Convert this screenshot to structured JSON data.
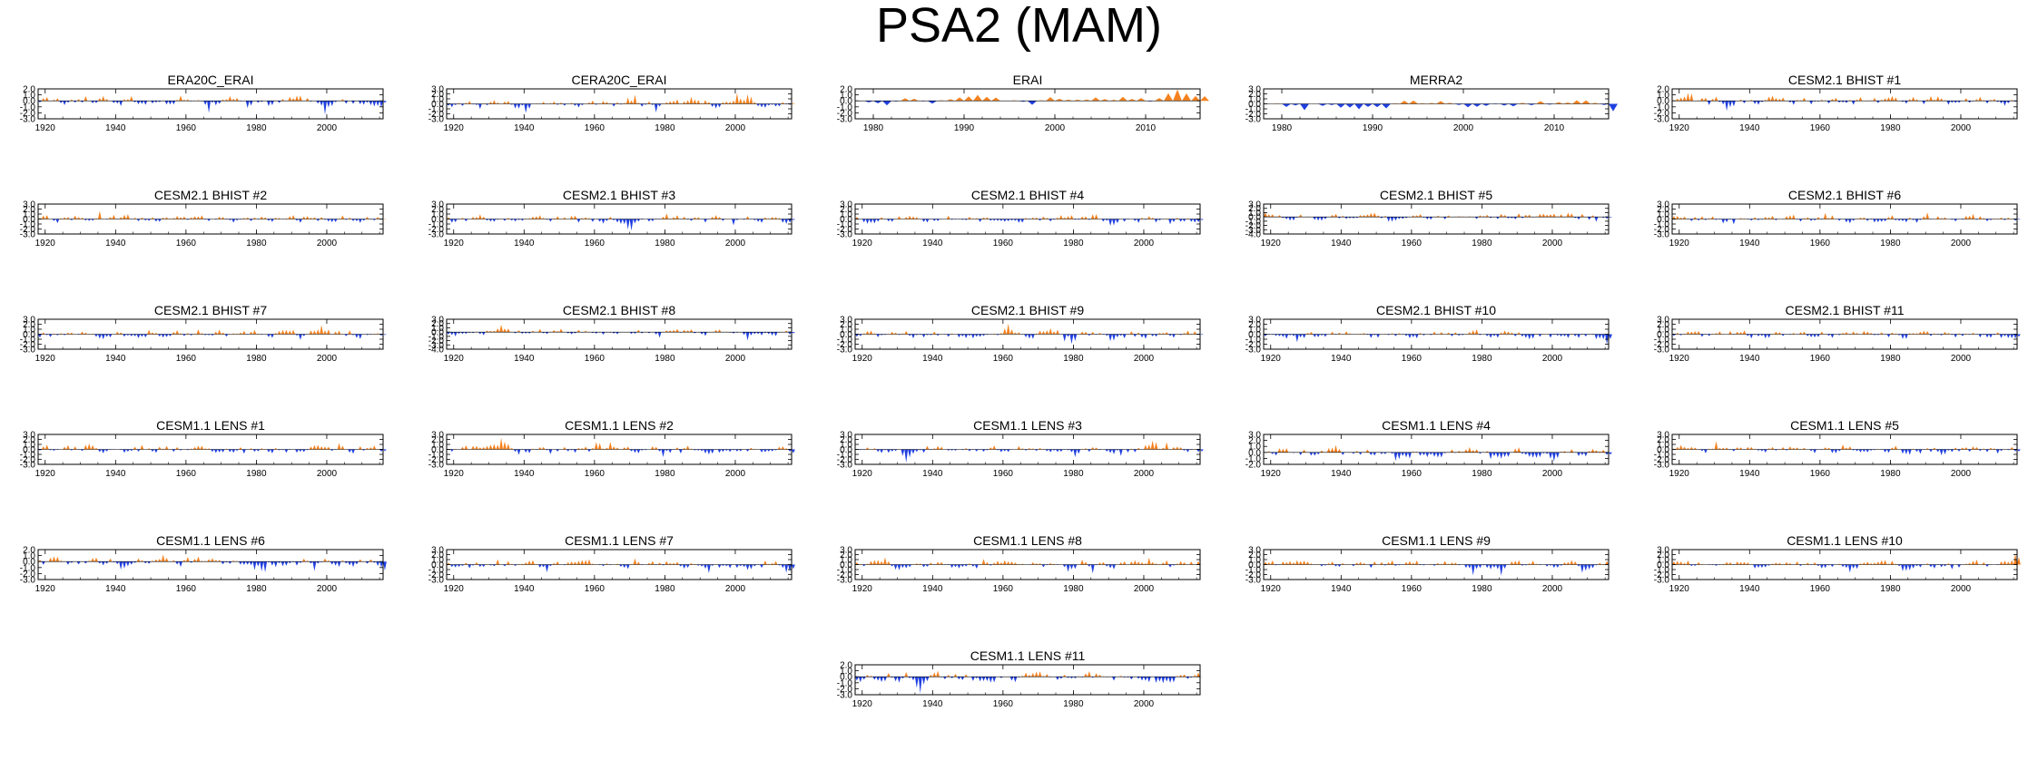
{
  "figure": {
    "title": "PSA2 (MAM)"
  },
  "colors": {
    "positive": "#f5821f",
    "negative": "#2040e0",
    "frame": "#000000"
  },
  "chart_data": [
    {
      "type": "area",
      "title": "ERA20C_ERAI",
      "x_range": [
        1918,
        2016
      ],
      "xticks": [
        "1920",
        "1940",
        "1960",
        "1980",
        "2000"
      ],
      "xtick_values": [
        1920,
        1940,
        1960,
        1980,
        2000
      ],
      "ylim": [
        -3,
        2
      ],
      "yticks": [
        "2.0",
        "1.0",
        "0.0",
        "-1.0",
        "-2.0",
        "-3.0"
      ],
      "ytick_values": [
        2,
        1,
        0,
        -1,
        -2,
        -3
      ]
    },
    {
      "type": "area",
      "title": "CERA20C_ERAI",
      "x_range": [
        1918,
        2016
      ],
      "xticks": [
        "1920",
        "1940",
        "1960",
        "1980",
        "2000"
      ],
      "xtick_values": [
        1920,
        1940,
        1960,
        1980,
        2000
      ],
      "ylim": [
        -3,
        3
      ],
      "yticks": [
        "3.0",
        "2.0",
        "1.0",
        "0.0",
        "-1.0",
        "-2.0",
        "-3.0"
      ],
      "ytick_values": [
        3,
        2,
        1,
        0,
        -1,
        -2,
        -3
      ]
    },
    {
      "type": "area",
      "title": "ERAI",
      "x_range": [
        1978,
        2016
      ],
      "xticks": [
        "1980",
        "1990",
        "2000",
        "2010"
      ],
      "xtick_values": [
        1980,
        1990,
        2000,
        2010
      ],
      "ylim": [
        -3,
        2
      ],
      "yticks": [
        "2.0",
        "1.0",
        "0.0",
        "-1.0",
        "-2.0",
        "-3.0"
      ],
      "ytick_values": [
        2,
        1,
        0,
        -1,
        -2,
        -3
      ]
    },
    {
      "type": "area",
      "title": "MERRA2",
      "x_range": [
        1978,
        2016
      ],
      "xticks": [
        "1980",
        "1990",
        "2000",
        "2010"
      ],
      "xtick_values": [
        1980,
        1990,
        2000,
        2010
      ],
      "ylim": [
        -3,
        3
      ],
      "yticks": [
        "3.0",
        "2.0",
        "1.0",
        "0.0",
        "-1.0",
        "-2.0",
        "-3.0"
      ],
      "ytick_values": [
        3,
        2,
        1,
        0,
        -1,
        -2,
        -3
      ]
    },
    {
      "type": "area",
      "title": "CESM2.1 BHIST #1",
      "x_range": [
        1918,
        2016
      ],
      "xticks": [
        "1920",
        "1940",
        "1960",
        "1980",
        "2000"
      ],
      "xtick_values": [
        1920,
        1940,
        1960,
        1980,
        2000
      ],
      "ylim": [
        -3,
        2
      ],
      "yticks": [
        "2.0",
        "1.0",
        "0.0",
        "-1.0",
        "-2.0",
        "-3.0"
      ],
      "ytick_values": [
        2,
        1,
        0,
        -1,
        -2,
        -3
      ]
    },
    {
      "type": "area",
      "title": "CESM2.1 BHIST #2",
      "x_range": [
        1918,
        2016
      ],
      "xticks": [
        "1920",
        "1940",
        "1960",
        "1980",
        "2000"
      ],
      "xtick_values": [
        1920,
        1940,
        1960,
        1980,
        2000
      ],
      "ylim": [
        -3,
        3
      ],
      "yticks": [
        "3.0",
        "2.0",
        "1.0",
        "0.0",
        "-1.0",
        "-2.0",
        "-3.0"
      ],
      "ytick_values": [
        3,
        2,
        1,
        0,
        -1,
        -2,
        -3
      ]
    },
    {
      "type": "area",
      "title": "CESM2.1 BHIST #3",
      "x_range": [
        1918,
        2016
      ],
      "xticks": [
        "1920",
        "1940",
        "1960",
        "1980",
        "2000"
      ],
      "xtick_values": [
        1920,
        1940,
        1960,
        1980,
        2000
      ],
      "ylim": [
        -3,
        3
      ],
      "yticks": [
        "3.0",
        "2.0",
        "1.0",
        "0.0",
        "-1.0",
        "-2.0",
        "-3.0"
      ],
      "ytick_values": [
        3,
        2,
        1,
        0,
        -1,
        -2,
        -3
      ]
    },
    {
      "type": "area",
      "title": "CESM2.1 BHIST #4",
      "x_range": [
        1918,
        2016
      ],
      "xticks": [
        "1920",
        "1940",
        "1960",
        "1980",
        "2000"
      ],
      "xtick_values": [
        1920,
        1940,
        1960,
        1980,
        2000
      ],
      "ylim": [
        -3,
        3
      ],
      "yticks": [
        "3.0",
        "2.0",
        "1.0",
        "0.0",
        "-1.0",
        "-2.0",
        "-3.0"
      ],
      "ytick_values": [
        3,
        2,
        1,
        0,
        -1,
        -2,
        -3
      ]
    },
    {
      "type": "area",
      "title": "CESM2.1 BHIST #5",
      "x_range": [
        1918,
        2016
      ],
      "xticks": [
        "1920",
        "1940",
        "1960",
        "1980",
        "2000"
      ],
      "xtick_values": [
        1920,
        1940,
        1960,
        1980,
        2000
      ],
      "ylim": [
        -4,
        3
      ],
      "yticks": [
        "3.0",
        "2.0",
        "1.0",
        "0.0",
        "-1.0",
        "-2.0",
        "-3.0",
        "-4.0"
      ],
      "ytick_values": [
        3,
        2,
        1,
        0,
        -1,
        -2,
        -3,
        -4
      ]
    },
    {
      "type": "area",
      "title": "CESM2.1 BHIST #6",
      "x_range": [
        1918,
        2016
      ],
      "xticks": [
        "1920",
        "1940",
        "1960",
        "1980",
        "2000"
      ],
      "xtick_values": [
        1920,
        1940,
        1960,
        1980,
        2000
      ],
      "ylim": [
        -3,
        3
      ],
      "yticks": [
        "3.0",
        "2.0",
        "1.0",
        "0.0",
        "-1.0",
        "-2.0",
        "-3.0"
      ],
      "ytick_values": [
        3,
        2,
        1,
        0,
        -1,
        -2,
        -3
      ]
    },
    {
      "type": "area",
      "title": "CESM2.1 BHIST #7",
      "x_range": [
        1918,
        2016
      ],
      "xticks": [
        "1920",
        "1940",
        "1960",
        "1980",
        "2000"
      ],
      "xtick_values": [
        1920,
        1940,
        1960,
        1980,
        2000
      ],
      "ylim": [
        -3,
        3
      ],
      "yticks": [
        "3.0",
        "2.0",
        "1.0",
        "0.0",
        "-1.0",
        "-2.0",
        "-3.0"
      ],
      "ytick_values": [
        3,
        2,
        1,
        0,
        -1,
        -2,
        -3
      ]
    },
    {
      "type": "area",
      "title": "CESM2.1 BHIST #8",
      "x_range": [
        1918,
        2016
      ],
      "xticks": [
        "1920",
        "1940",
        "1960",
        "1980",
        "2000"
      ],
      "xtick_values": [
        1920,
        1940,
        1960,
        1980,
        2000
      ],
      "ylim": [
        -4,
        3
      ],
      "yticks": [
        "3.0",
        "2.0",
        "1.0",
        "0.0",
        "-1.0",
        "-2.0",
        "-3.0",
        "-4.0"
      ],
      "ytick_values": [
        3,
        2,
        1,
        0,
        -1,
        -2,
        -3,
        -4
      ]
    },
    {
      "type": "area",
      "title": "CESM2.1 BHIST #9",
      "x_range": [
        1918,
        2016
      ],
      "xticks": [
        "1920",
        "1940",
        "1960",
        "1980",
        "2000"
      ],
      "xtick_values": [
        1920,
        1940,
        1960,
        1980,
        2000
      ],
      "ylim": [
        -3,
        3
      ],
      "yticks": [
        "3.0",
        "2.0",
        "1.0",
        "0.0",
        "-1.0",
        "-2.0",
        "-3.0"
      ],
      "ytick_values": [
        3,
        2,
        1,
        0,
        -1,
        -2,
        -3
      ]
    },
    {
      "type": "area",
      "title": "CESM2.1 BHIST #10",
      "x_range": [
        1918,
        2016
      ],
      "xticks": [
        "1920",
        "1940",
        "1960",
        "1980",
        "2000"
      ],
      "xtick_values": [
        1920,
        1940,
        1960,
        1980,
        2000
      ],
      "ylim": [
        -3,
        3
      ],
      "yticks": [
        "3.0",
        "2.0",
        "1.0",
        "0.0",
        "-1.0",
        "-2.0",
        "-3.0"
      ],
      "ytick_values": [
        3,
        2,
        1,
        0,
        -1,
        -2,
        -3
      ]
    },
    {
      "type": "area",
      "title": "CESM2.1 BHIST #11",
      "x_range": [
        1918,
        2016
      ],
      "xticks": [
        "1920",
        "1940",
        "1960",
        "1980",
        "2000"
      ],
      "xtick_values": [
        1920,
        1940,
        1960,
        1980,
        2000
      ],
      "ylim": [
        -3,
        3
      ],
      "yticks": [
        "3.0",
        "2.0",
        "1.0",
        "0.0",
        "-1.0",
        "-2.0",
        "-3.0"
      ],
      "ytick_values": [
        3,
        2,
        1,
        0,
        -1,
        -2,
        -3
      ]
    },
    {
      "type": "area",
      "title": "CESM1.1 LENS #1",
      "x_range": [
        1918,
        2016
      ],
      "xticks": [
        "1920",
        "1940",
        "1960",
        "1980",
        "2000"
      ],
      "xtick_values": [
        1920,
        1940,
        1960,
        1980,
        2000
      ],
      "ylim": [
        -3,
        3
      ],
      "yticks": [
        "3.0",
        "2.0",
        "1.0",
        "0.0",
        "-1.0",
        "-2.0",
        "-3.0"
      ],
      "ytick_values": [
        3,
        2,
        1,
        0,
        -1,
        -2,
        -3
      ]
    },
    {
      "type": "area",
      "title": "CESM1.1 LENS #2",
      "x_range": [
        1918,
        2016
      ],
      "xticks": [
        "1920",
        "1940",
        "1960",
        "1980",
        "2000"
      ],
      "xtick_values": [
        1920,
        1940,
        1960,
        1980,
        2000
      ],
      "ylim": [
        -3,
        3
      ],
      "yticks": [
        "3.0",
        "2.0",
        "1.0",
        "0.0",
        "-1.0",
        "-2.0",
        "-3.0"
      ],
      "ytick_values": [
        3,
        2,
        1,
        0,
        -1,
        -2,
        -3
      ]
    },
    {
      "type": "area",
      "title": "CESM1.1 LENS #3",
      "x_range": [
        1918,
        2016
      ],
      "xticks": [
        "1920",
        "1940",
        "1960",
        "1980",
        "2000"
      ],
      "xtick_values": [
        1920,
        1940,
        1960,
        1980,
        2000
      ],
      "ylim": [
        -3,
        3
      ],
      "yticks": [
        "3.0",
        "2.0",
        "1.0",
        "0.0",
        "-1.0",
        "-2.0",
        "-3.0"
      ],
      "ytick_values": [
        3,
        2,
        1,
        0,
        -1,
        -2,
        -3
      ]
    },
    {
      "type": "area",
      "title": "CESM1.1 LENS #4",
      "x_range": [
        1918,
        2016
      ],
      "xticks": [
        "1920",
        "1940",
        "1960",
        "1980",
        "2000"
      ],
      "xtick_values": [
        1920,
        1940,
        1960,
        1980,
        2000
      ],
      "ylim": [
        -2,
        3
      ],
      "yticks": [
        "3.0",
        "2.0",
        "1.0",
        "0.0",
        "-1.0",
        "-2.0"
      ],
      "ytick_values": [
        3,
        2,
        1,
        0,
        -1,
        -2
      ]
    },
    {
      "type": "area",
      "title": "CESM1.1 LENS #5",
      "x_range": [
        1918,
        2016
      ],
      "xticks": [
        "1920",
        "1940",
        "1960",
        "1980",
        "2000"
      ],
      "xtick_values": [
        1920,
        1940,
        1960,
        1980,
        2000
      ],
      "ylim": [
        -3,
        3
      ],
      "yticks": [
        "3.0",
        "2.0",
        "1.0",
        "0.0",
        "-1.0",
        "-2.0",
        "-3.0"
      ],
      "ytick_values": [
        3,
        2,
        1,
        0,
        -1,
        -2,
        -3
      ]
    },
    {
      "type": "area",
      "title": "CESM1.1 LENS #6",
      "x_range": [
        1918,
        2016
      ],
      "xticks": [
        "1920",
        "1940",
        "1960",
        "1980",
        "2000"
      ],
      "xtick_values": [
        1920,
        1940,
        1960,
        1980,
        2000
      ],
      "ylim": [
        -3,
        2
      ],
      "yticks": [
        "2.0",
        "1.0",
        "0.0",
        "-1.0",
        "-2.0",
        "-3.0"
      ],
      "ytick_values": [
        2,
        1,
        0,
        -1,
        -2,
        -3
      ]
    },
    {
      "type": "area",
      "title": "CESM1.1 LENS #7",
      "x_range": [
        1918,
        2016
      ],
      "xticks": [
        "1920",
        "1940",
        "1960",
        "1980",
        "2000"
      ],
      "xtick_values": [
        1920,
        1940,
        1960,
        1980,
        2000
      ],
      "ylim": [
        -3,
        3
      ],
      "yticks": [
        "3.0",
        "2.0",
        "1.0",
        "0.0",
        "-1.0",
        "-2.0",
        "-3.0"
      ],
      "ytick_values": [
        3,
        2,
        1,
        0,
        -1,
        -2,
        -3
      ]
    },
    {
      "type": "area",
      "title": "CESM1.1 LENS #8",
      "x_range": [
        1918,
        2016
      ],
      "xticks": [
        "1920",
        "1940",
        "1960",
        "1980",
        "2000"
      ],
      "xtick_values": [
        1920,
        1940,
        1960,
        1980,
        2000
      ],
      "ylim": [
        -3,
        3
      ],
      "yticks": [
        "3.0",
        "2.0",
        "1.0",
        "0.0",
        "-1.0",
        "-2.0",
        "-3.0"
      ],
      "ytick_values": [
        3,
        2,
        1,
        0,
        -1,
        -2,
        -3
      ]
    },
    {
      "type": "area",
      "title": "CESM1.1 LENS #9",
      "x_range": [
        1918,
        2016
      ],
      "xticks": [
        "1920",
        "1940",
        "1960",
        "1980",
        "2000"
      ],
      "xtick_values": [
        1920,
        1940,
        1960,
        1980,
        2000
      ],
      "ylim": [
        -3,
        3
      ],
      "yticks": [
        "3.0",
        "2.0",
        "1.0",
        "0.0",
        "-1.0",
        "-2.0",
        "-3.0"
      ],
      "ytick_values": [
        3,
        2,
        1,
        0,
        -1,
        -2,
        -3
      ]
    },
    {
      "type": "area",
      "title": "CESM1.1 LENS #10",
      "x_range": [
        1918,
        2016
      ],
      "xticks": [
        "1920",
        "1940",
        "1960",
        "1980",
        "2000"
      ],
      "xtick_values": [
        1920,
        1940,
        1960,
        1980,
        2000
      ],
      "ylim": [
        -3,
        3
      ],
      "yticks": [
        "3.0",
        "2.0",
        "1.0",
        "0.0",
        "-1.0",
        "-2.0",
        "-3.0"
      ],
      "ytick_values": [
        3,
        2,
        1,
        0,
        -1,
        -2,
        -3
      ]
    },
    {
      "type": "area",
      "title": "CESM1.1 LENS #11",
      "x_range": [
        1918,
        2016
      ],
      "xticks": [
        "1920",
        "1940",
        "1960",
        "1980",
        "2000"
      ],
      "xtick_values": [
        1920,
        1940,
        1960,
        1980,
        2000
      ],
      "ylim": [
        -3,
        2
      ],
      "yticks": [
        "2.0",
        "1.0",
        "0.0",
        "-1.0",
        "-2.0",
        "-3.0"
      ],
      "ytick_values": [
        2,
        1,
        0,
        -1,
        -2,
        -3
      ]
    }
  ]
}
